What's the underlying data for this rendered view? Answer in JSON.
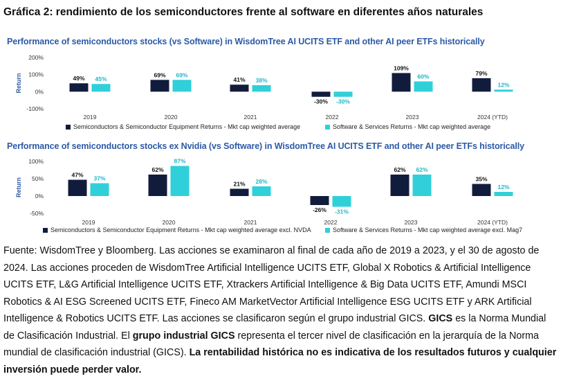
{
  "page_title": "Gráfica 2: rendimiento de los semiconductores frente al software en diferentes años naturales",
  "colors": {
    "semis": "#111c3d",
    "software": "#2fd0d9",
    "title": "#2b5aa6"
  },
  "chart_data": [
    {
      "type": "bar",
      "title": "Performance of semiconductors stocks (vs Software) in WisdomTree AI UCITS ETF and other AI peer ETFs historically",
      "ylabel": "Return",
      "ylim": [
        -100,
        200
      ],
      "yticks": [
        "200%",
        "100%",
        "0%",
        "-100%"
      ],
      "yticks_values": [
        200,
        100,
        0,
        -100
      ],
      "grid": false,
      "legend_position": "bottom",
      "categories": [
        "2019",
        "2020",
        "2021",
        "2022",
        "2023",
        "2024 (YTD)"
      ],
      "series": [
        {
          "name": "Semiconductors & Semiconductor Equipment Returns - Mkt cap weighted average",
          "values": [
            49,
            69,
            41,
            -30,
            109,
            79
          ],
          "labels": [
            "49%",
            "69%",
            "41%",
            "-30%",
            "109%",
            "79%"
          ]
        },
        {
          "name": "Software & Services Returns - Mkt cap weighted average",
          "values": [
            45,
            69,
            38,
            -30,
            60,
            12
          ],
          "labels": [
            "45%",
            "69%",
            "38%",
            "-30%",
            "60%",
            "12%"
          ]
        }
      ]
    },
    {
      "type": "bar",
      "title": "Performance of semiconductors stocks ex Nvidia (vs Software) in WisdomTree AI UCITS ETF and other AI peer ETFs historically",
      "ylabel": "Return",
      "ylim": [
        -50,
        100
      ],
      "yticks": [
        "100%",
        "50%",
        "0%",
        "-50%"
      ],
      "yticks_values": [
        100,
        50,
        0,
        -50
      ],
      "grid": false,
      "legend_position": "bottom",
      "categories": [
        "2019",
        "2020",
        "2021",
        "2022",
        "2023",
        "2024 (YTD)"
      ],
      "series": [
        {
          "name": "Semiconductors & Semiconductor Equipment Returns - Mkt cap weighted average excl. NVDA",
          "values": [
            47,
            62,
            21,
            -26,
            62,
            35
          ],
          "labels": [
            "47%",
            "62%",
            "21%",
            "-26%",
            "62%",
            "35%"
          ]
        },
        {
          "name": "Software & Services Returns - Mkt cap weighted average excl. Mag7",
          "values": [
            37,
            87,
            28,
            -31,
            62,
            12
          ],
          "labels": [
            "37%",
            "87%",
            "28%",
            "-31%",
            "62%",
            "12%"
          ]
        }
      ]
    }
  ],
  "source": {
    "s1": "Fuente: WisdomTree y Bloomberg. Las acciones se examinaron al final de cada año de 2019 a 2023, y el 30 de agosto de 2024. Las acciones proceden de WisdomTree Artificial Intelligence UCITS ETF, Global X Robotics & Artificial Intelligence UCITS ETF, L&G Artificial Intelligence UCITS ETF, Xtrackers Artificial Intelligence & Big Data UCITS ETF, Amundi MSCI Robotics & AI ESG Screened UCITS ETF, Fineco AM MarketVector Artificial Intelligence ESG UCITS ETF y ARK Artificial Intelligence & Robotics UCITS ETF. Las acciones se clasificaron según el grupo industrial GICS. ",
    "b1": "GICS",
    "s2": " es la Norma Mundial de Clasificación Industrial. El ",
    "b2": "grupo industrial GICS",
    "s3": " representa el tercer nivel de clasificación en la jerarquía de la Norma mundial de clasificación industrial (GICS). ",
    "b3": "La rentabilidad histórica no es indicativa de los resultados futuros y cualquier inversión puede perder valor."
  }
}
